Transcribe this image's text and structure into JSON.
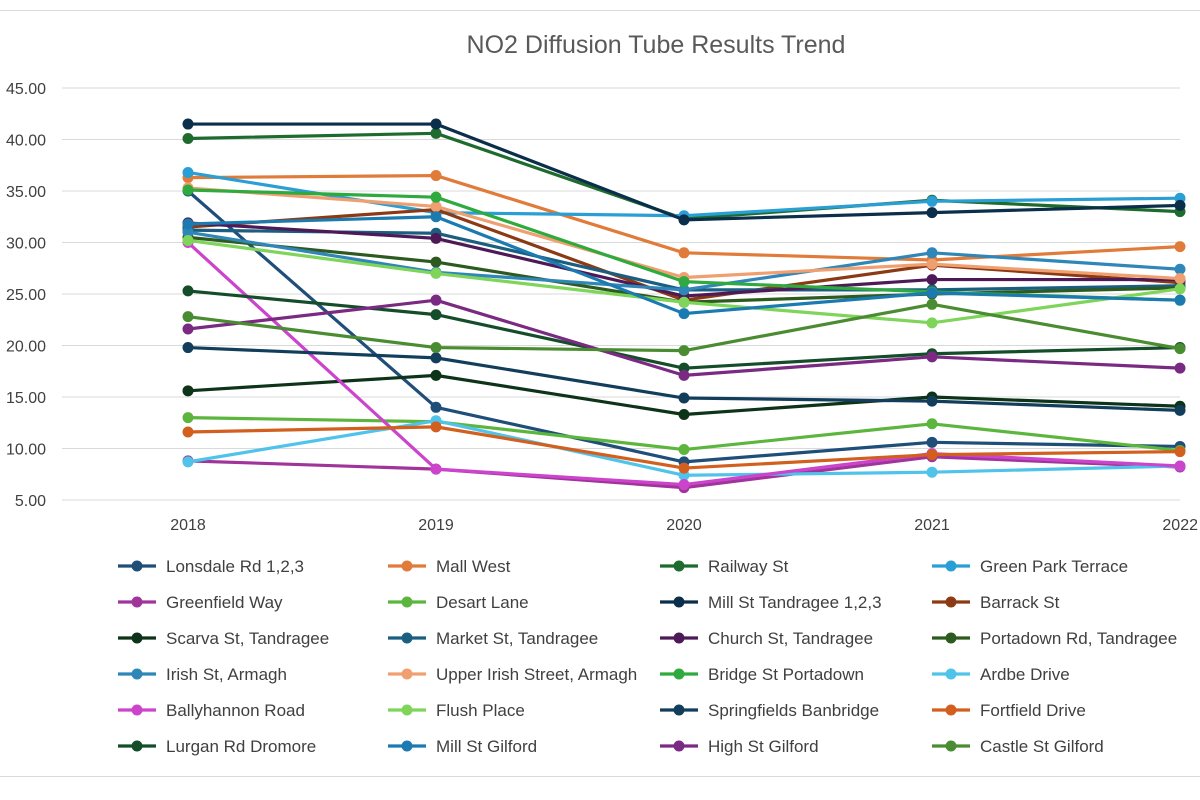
{
  "chart_data": {
    "type": "line",
    "title": "NO2 Diffusion Tube Results Trend",
    "xlabel": "",
    "ylabel": "",
    "categories": [
      "2018",
      "2019",
      "2020",
      "2021",
      "2022"
    ],
    "ylim": [
      5,
      45
    ],
    "yticks": [
      "5.00",
      "10.00",
      "15.00",
      "20.00",
      "25.00",
      "30.00",
      "35.00",
      "40.00",
      "45.00"
    ],
    "grid": true,
    "legend_position": "bottom",
    "series": [
      {
        "name": "Lonsdale Rd 1,2,3",
        "color": "#1f4e79",
        "values": [
          35.0,
          14.0,
          8.7,
          10.6,
          10.2
        ]
      },
      {
        "name": "Mall West",
        "color": "#e07b39",
        "values": [
          36.3,
          36.5,
          29.0,
          28.3,
          29.6
        ]
      },
      {
        "name": "Railway St",
        "color": "#1e6b2e",
        "values": [
          40.1,
          40.6,
          32.3,
          34.1,
          33.0
        ]
      },
      {
        "name": "Green Park Terrace",
        "color": "#2a9fd6",
        "values": [
          36.8,
          32.9,
          32.6,
          34.0,
          34.3
        ]
      },
      {
        "name": "Greenfield Way",
        "color": "#a0349a",
        "values": [
          8.8,
          8.0,
          6.2,
          9.2,
          8.2
        ]
      },
      {
        "name": "Desart Lane",
        "color": "#5cb63e",
        "values": [
          13.0,
          12.6,
          9.9,
          12.4,
          9.8
        ]
      },
      {
        "name": "Mill St Tandragee 1,2,3",
        "color": "#0b2e4a",
        "values": [
          41.5,
          41.5,
          32.2,
          32.9,
          33.6
        ]
      },
      {
        "name": "Barrack St",
        "color": "#8b3a14",
        "values": [
          31.5,
          33.2,
          24.4,
          27.8,
          26.1
        ]
      },
      {
        "name": "Scarva St, Tandragee",
        "color": "#0d3318",
        "values": [
          15.6,
          17.1,
          13.3,
          15.0,
          14.1
        ]
      },
      {
        "name": "Market St, Tandragee",
        "color": "#1a5e80",
        "values": [
          31.2,
          30.9,
          25.4,
          25.4,
          25.8
        ]
      },
      {
        "name": "Church St, Tandragee",
        "color": "#4d1a57",
        "values": [
          31.9,
          30.4,
          24.8,
          26.4,
          26.4
        ]
      },
      {
        "name": "Portadown Rd, Tandragee",
        "color": "#2d5a1e",
        "values": [
          30.5,
          28.1,
          24.2,
          25.0,
          25.6
        ]
      },
      {
        "name": "Irish St, Armagh",
        "color": "#2f86b8",
        "values": [
          31.0,
          27.1,
          25.4,
          29.0,
          27.4
        ]
      },
      {
        "name": "Upper Irish Street, Armagh",
        "color": "#f0a070",
        "values": [
          35.3,
          33.5,
          26.6,
          27.9,
          26.5
        ]
      },
      {
        "name": "Bridge St Portadown",
        "color": "#2eaa3e",
        "values": [
          35.1,
          34.4,
          26.2,
          25.2,
          24.4
        ]
      },
      {
        "name": "Ardbe Drive",
        "color": "#4fc3ea",
        "values": [
          8.7,
          12.7,
          7.4,
          7.7,
          8.3
        ]
      },
      {
        "name": "Ballyhannon Road",
        "color": "#cc44cc",
        "values": [
          30.0,
          8.0,
          6.5,
          9.5,
          8.3
        ]
      },
      {
        "name": "Flush Place",
        "color": "#7fd45a",
        "values": [
          30.2,
          27.0,
          24.2,
          22.2,
          25.5
        ]
      },
      {
        "name": "Springfields Banbridge",
        "color": "#123e5c",
        "values": [
          19.8,
          18.8,
          14.9,
          14.6,
          13.7
        ]
      },
      {
        "name": "Fortfield Drive",
        "color": "#d25f1e",
        "values": [
          11.6,
          12.1,
          8.1,
          9.4,
          9.7
        ]
      },
      {
        "name": "Lurgan Rd Dromore",
        "color": "#154d2a",
        "values": [
          25.3,
          23.0,
          17.8,
          19.2,
          19.8
        ]
      },
      {
        "name": "Mill St Gilford",
        "color": "#1b7bb0",
        "values": [
          31.8,
          32.5,
          23.1,
          25.1,
          24.4
        ]
      },
      {
        "name": "High St Gilford",
        "color": "#7a2a82",
        "values": [
          21.6,
          24.4,
          17.1,
          18.9,
          17.8
        ]
      },
      {
        "name": "Castle St Gilford",
        "color": "#4a8c32",
        "values": [
          22.8,
          19.8,
          19.5,
          24.0,
          19.7
        ]
      }
    ]
  }
}
